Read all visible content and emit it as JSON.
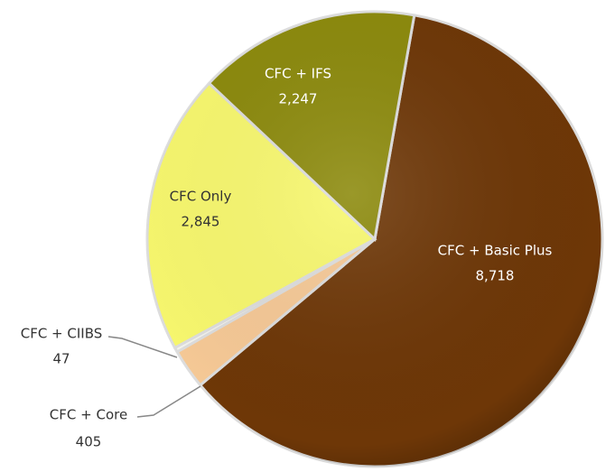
{
  "chart_data": {
    "type": "pie",
    "categories": [
      "CFC + Basic Plus",
      "CFC + Core",
      "CFC + CIIBS",
      "CFC Only",
      "CFC + IFS"
    ],
    "values": [
      8718,
      405,
      47,
      2845,
      2247
    ],
    "value_labels": [
      "8,718",
      "405",
      "47",
      "2,845",
      "2,247"
    ],
    "colors": [
      "#6e3707",
      "#f6c996",
      "#f4f4ee",
      "#f8f86e",
      "#8c8a0c"
    ]
  }
}
